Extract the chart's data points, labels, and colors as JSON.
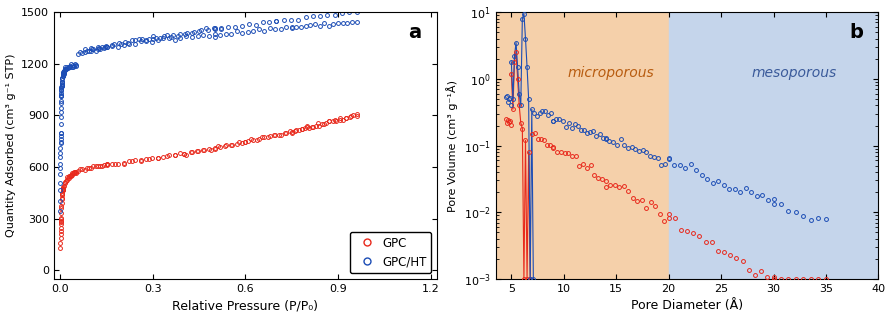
{
  "panel_a": {
    "title": "a",
    "xlabel": "Relative Pressure (P/P₀)",
    "ylabel": "Quantity Adsorbed (cm³ g⁻¹ STP)",
    "xlim": [
      -0.02,
      1.22
    ],
    "ylim": [
      -50,
      1500
    ],
    "yticks": [
      0,
      300,
      600,
      900,
      1200,
      1500
    ],
    "xticks": [
      0.0,
      0.3,
      0.6,
      0.9,
      1.2
    ],
    "gpc_color": "#e8291c",
    "gpcht_color": "#1c4db5"
  },
  "panel_b": {
    "title": "b",
    "xlabel": "Pore Diameter (Å)",
    "ylabel": "Pore Volume (cm³ g⁻¹Å)",
    "xlim": [
      3.5,
      40
    ],
    "ylim": [
      0.001,
      10
    ],
    "xticks": [
      5,
      10,
      15,
      20,
      25,
      30,
      35,
      40
    ],
    "micro_label": "microporous",
    "meso_label": "mesoporous",
    "micro_color": "#f5d0aa",
    "meso_color": "#c5d5eb",
    "micro_end": 20,
    "xmax": 40,
    "gpc_color": "#e8291c",
    "gpcht_color": "#1c4db5"
  }
}
